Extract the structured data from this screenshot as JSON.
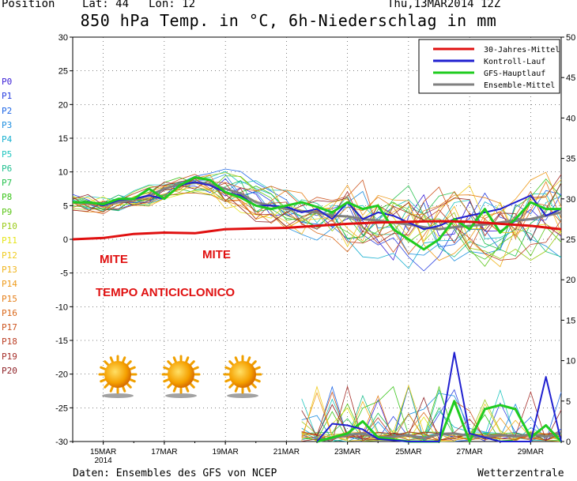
{
  "header": {
    "position_label": "Position",
    "lat_label": "Lat: 44",
    "lon_label": "Lon: 12",
    "run": "Thu,13MAR2014 12Z"
  },
  "title": "850 hPa Temp. in °C, 6h-Niederschlag in mm",
  "footer": {
    "source": "Daten: Ensembles des GFS von NCEP",
    "brand": "Wetterzentrale"
  },
  "members": [
    "P0",
    "P1",
    "P2",
    "P3",
    "P4",
    "P5",
    "P6",
    "P7",
    "P8",
    "P9",
    "P10",
    "P11",
    "P12",
    "P13",
    "P14",
    "P15",
    "P16",
    "P17",
    "P18",
    "P19",
    "P20"
  ],
  "member_colors": [
    "#3b1fd6",
    "#2940e0",
    "#1d66e6",
    "#1f8fe0",
    "#19b0d0",
    "#22c6c0",
    "#1fbf8f",
    "#27c14e",
    "#3ac51c",
    "#5cc61a",
    "#9ccc1b",
    "#e5e51a",
    "#f0cc22",
    "#f0b51f",
    "#ee9b1c",
    "#e57f1a",
    "#da681a",
    "#cd5520",
    "#bb3f25",
    "#a52d28",
    "#8f2227"
  ],
  "annotations": {
    "mite_1": "MITE",
    "mite_2": "MITE",
    "anticiclonico": "TEMPO ANTICICLONICO"
  },
  "chart_data": {
    "type": "line",
    "x_ticks": [
      "15MAR",
      "17MAR",
      "19MAR",
      "21MAR",
      "23MAR",
      "25MAR",
      "27MAR",
      "29MAR"
    ],
    "x_year": "2014",
    "x_range_days": [
      0,
      16
    ],
    "left_axis": {
      "label": "°C",
      "ylim": [
        -30,
        30
      ],
      "ticks": [
        30,
        25,
        20,
        15,
        10,
        5,
        0,
        -5,
        -10,
        -15,
        -20,
        -25,
        -30
      ]
    },
    "right_axis": {
      "label": "mm",
      "ylim": [
        0,
        50
      ],
      "ticks": [
        50,
        45,
        40,
        35,
        30,
        25,
        20,
        15,
        10,
        5,
        0
      ]
    },
    "legend": {
      "position": "top-right",
      "entries": [
        {
          "name": "30-Jahres-Mittel",
          "color": "#e01010"
        },
        {
          "name": "Kontroll-Lauf",
          "color": "#2020d0"
        },
        {
          "name": "GFS-Hauptlauf",
          "color": "#20cc20"
        },
        {
          "name": "Ensemble-Mittel",
          "color": "#808080"
        }
      ]
    },
    "series": [
      {
        "name": "30-Jahres-Mittel",
        "axis": "left",
        "color": "#e01010",
        "x": [
          0,
          1,
          2,
          3,
          4,
          5,
          6,
          7,
          8,
          9,
          10,
          11,
          12,
          13,
          14,
          15,
          16
        ],
        "y": [
          0.0,
          0.2,
          0.8,
          1.0,
          0.9,
          1.5,
          1.6,
          1.7,
          2.0,
          2.3,
          2.5,
          2.6,
          2.7,
          2.6,
          2.3,
          2.0,
          1.5
        ]
      },
      {
        "name": "Ensemble-Mittel",
        "axis": "left",
        "color": "#808080",
        "x": [
          0,
          0.5,
          1,
          1.5,
          2,
          2.5,
          3,
          3.5,
          4,
          4.5,
          5,
          5.5,
          6,
          6.5,
          7,
          7.5,
          8,
          8.5,
          9,
          9.5,
          10,
          10.5,
          11,
          11.5,
          12,
          12.5,
          13,
          13.5,
          14,
          14.5,
          15,
          15.5,
          16
        ],
        "y": [
          5.5,
          5.4,
          5.2,
          5.5,
          5.9,
          6.5,
          7.5,
          8.2,
          8.4,
          8.2,
          7.5,
          6.8,
          5.5,
          5.0,
          4.5,
          4.2,
          4.0,
          3.5,
          3.4,
          3.0,
          2.8,
          2.5,
          2.2,
          1.8,
          1.5,
          1.8,
          2.0,
          2.2,
          2.5,
          2.8,
          3.0,
          3.5,
          4.0
        ]
      },
      {
        "name": "Kontroll-Lauf",
        "axis": "left",
        "color": "#2020d0",
        "x": [
          0,
          0.5,
          1,
          1.5,
          2,
          2.5,
          3,
          3.5,
          4,
          4.5,
          5,
          5.5,
          6,
          6.5,
          7,
          7.5,
          8,
          8.5,
          9,
          9.5,
          10,
          10.5,
          11,
          11.5,
          12,
          12.5,
          13,
          13.5,
          14,
          14.5,
          15,
          15.5,
          16
        ],
        "y": [
          5.5,
          5.6,
          5.0,
          5.8,
          6.0,
          6.5,
          6.0,
          8.0,
          8.5,
          8.0,
          7.0,
          6.5,
          5.0,
          5.0,
          4.8,
          4.0,
          4.5,
          3.0,
          5.5,
          3.0,
          4.0,
          3.5,
          2.5,
          1.5,
          2.0,
          3.0,
          3.5,
          4.0,
          4.5,
          5.5,
          6.5,
          3.5,
          4.5
        ]
      },
      {
        "name": "GFS-Hauptlauf",
        "axis": "left",
        "color": "#20cc20",
        "x": [
          0,
          0.5,
          1,
          1.5,
          2,
          2.5,
          3,
          3.5,
          4,
          4.5,
          5,
          5.5,
          6,
          6.5,
          7,
          7.5,
          8,
          8.5,
          9,
          9.5,
          10,
          10.5,
          11,
          11.5,
          12,
          12.5,
          13,
          13.5,
          14,
          14.5,
          15,
          15.5,
          16
        ],
        "y": [
          5.5,
          5.5,
          5.2,
          6.0,
          6.0,
          7.5,
          6.0,
          8.0,
          9.2,
          8.8,
          7.0,
          6.2,
          5.0,
          4.5,
          5.0,
          5.5,
          4.8,
          4.0,
          5.5,
          4.5,
          5.0,
          1.5,
          0.0,
          -1.5,
          0.0,
          3.0,
          1.5,
          4.5,
          1.0,
          3.0,
          5.5,
          4.5,
          4.5
        ]
      },
      {
        "name": "Kontroll-Lauf Niederschlag",
        "axis": "right",
        "color": "#2020d0",
        "x": [
          8,
          8.5,
          9,
          9.5,
          10,
          11,
          12,
          12.5,
          13,
          14,
          15,
          15.5,
          16
        ],
        "y": [
          0.0,
          2.2,
          2.0,
          1.5,
          0.3,
          0.0,
          0.0,
          11.0,
          1.0,
          0.0,
          0.0,
          8.0,
          0.0
        ]
      },
      {
        "name": "GFS-Hauptlauf Niederschlag",
        "axis": "right",
        "color": "#20cc20",
        "x": [
          8,
          9,
          9.5,
          10,
          11,
          12,
          12.5,
          13,
          13.5,
          14,
          14.5,
          15,
          15.5,
          16
        ],
        "y": [
          0.0,
          1.0,
          2.5,
          0.5,
          0.0,
          0.0,
          5.0,
          0.0,
          4.0,
          4.5,
          4.0,
          0.5,
          2.0,
          0.0
        ]
      },
      {
        "name": "Ensemble-Mittel Niederschlag",
        "axis": "right",
        "color": "#808080",
        "x": [
          8,
          9,
          9.5,
          10,
          10.5,
          11,
          11.5,
          12,
          12.5,
          13,
          13.5,
          14,
          14.5,
          15,
          15.5,
          16
        ],
        "y": [
          0.0,
          0.8,
          1.0,
          0.5,
          0.6,
          0.8,
          0.4,
          0.9,
          1.0,
          0.7,
          0.5,
          0.8,
          0.6,
          0.9,
          0.6,
          1.1
        ]
      }
    ],
    "grid": true
  }
}
